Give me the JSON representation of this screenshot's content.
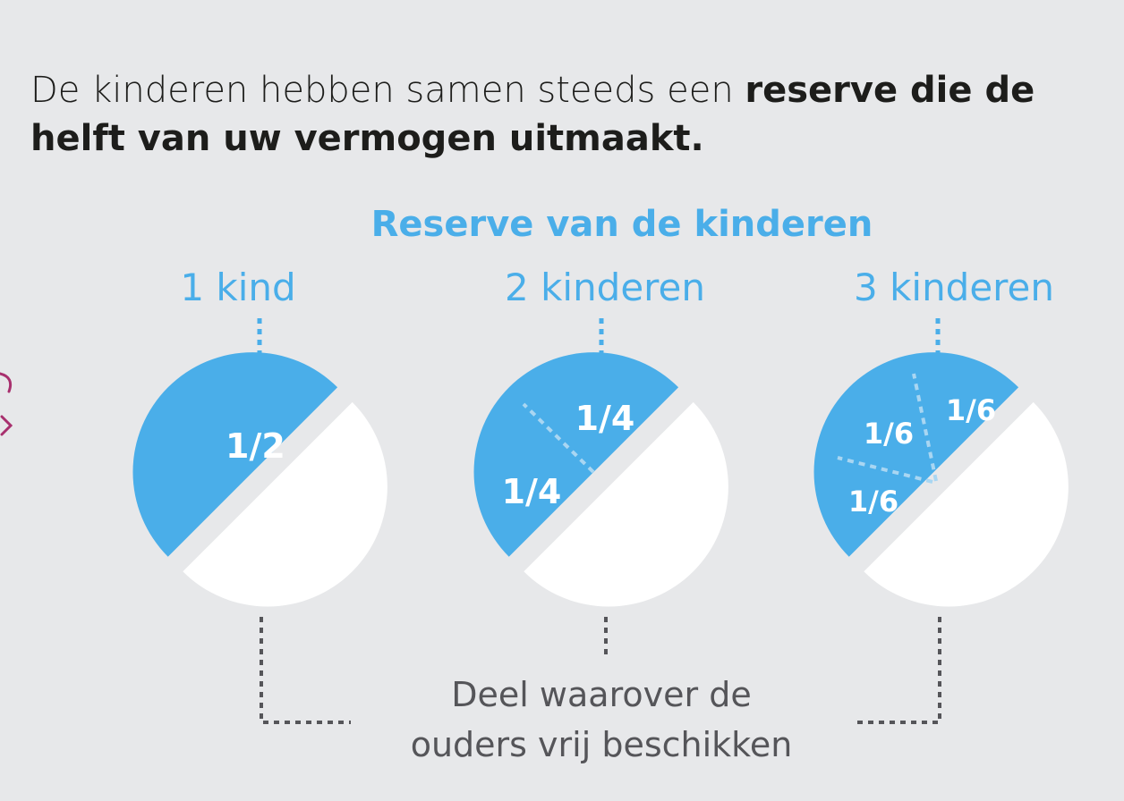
{
  "intro": {
    "regular": "De kinderen hebben samen steeds een ",
    "bold": "reserve die de helft van uw vermogen uitmaakt."
  },
  "diagram": {
    "title": "Reserve van de kinderen",
    "columns": [
      {
        "label": "1 kind",
        "parts": [
          "1/2"
        ]
      },
      {
        "label": "2 kinderen",
        "parts": [
          "1/4",
          "1/4"
        ]
      },
      {
        "label": "3 kinderen",
        "parts": [
          "1/6",
          "1/6",
          "1/6"
        ]
      }
    ],
    "caption_line1": "Deel waarover de",
    "caption_line2": "ouders vrij beschikken"
  },
  "colors": {
    "background": "#e7e8ea",
    "reserve_blue": "#4aaee9",
    "free_part": "#ffffff",
    "text": "#1d1d1b",
    "caption": "#555559",
    "edge_mark": "#a8306e"
  }
}
